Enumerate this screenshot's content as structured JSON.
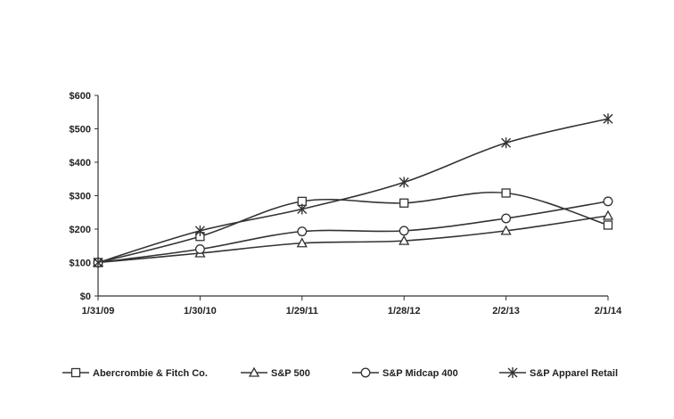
{
  "chart_data": {
    "type": "line",
    "title": "",
    "xlabel": "",
    "ylabel": "",
    "categories": [
      "1/31/09",
      "1/30/10",
      "1/29/11",
      "1/28/12",
      "2/2/13",
      "2/1/14"
    ],
    "ylim": [
      0,
      600
    ],
    "y_ticks": [
      0,
      100,
      200,
      300,
      400,
      500,
      600
    ],
    "y_tick_labels": [
      "$0",
      "$100",
      "$200",
      "$300",
      "$400",
      "$500",
      "$600"
    ],
    "grid": false,
    "legend_position": "bottom",
    "series": [
      {
        "name": "Abercrombie & Fitch Co.",
        "marker": "square",
        "values": [
          100,
          178,
          283,
          278,
          308,
          212
        ]
      },
      {
        "name": "S&P 500",
        "marker": "triangle",
        "values": [
          100,
          128,
          158,
          165,
          195,
          240
        ]
      },
      {
        "name": "S&P Midcap 400",
        "marker": "circle",
        "values": [
          100,
          140,
          193,
          195,
          232,
          283
        ]
      },
      {
        "name": "S&P Apparel Retail",
        "marker": "star",
        "values": [
          100,
          195,
          260,
          340,
          458,
          530
        ]
      }
    ]
  }
}
